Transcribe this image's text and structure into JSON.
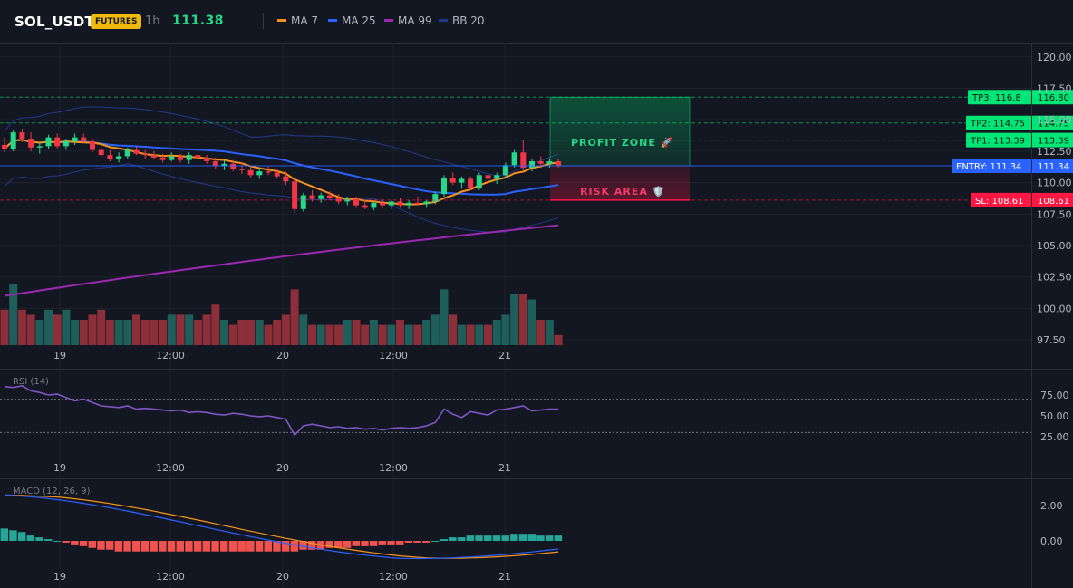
{
  "header": {
    "symbol": "SOL_USDT",
    "market_badge": "FUTURES",
    "timeframe": "1h",
    "last_price": "111.38",
    "legend": [
      {
        "label": "MA 7",
        "color": "#f7931a"
      },
      {
        "label": "MA 25",
        "color": "#2962ff"
      },
      {
        "label": "MA 99",
        "color": "#9c27b0"
      },
      {
        "label": "BB 20",
        "color": "#1e3a8a"
      }
    ]
  },
  "colors": {
    "background": "#131722",
    "bull": "#26d98a",
    "bear": "#f23645",
    "volume_bull": "#1f5f5b",
    "volume_bear": "#8c2f39",
    "entry": "#2962ff",
    "target": "#00e676",
    "stop": "#ff1744"
  },
  "price_axis": {
    "ticks": [
      "120.00",
      "117.50",
      "115.00",
      "112.50",
      "110.00",
      "107.50",
      "105.00",
      "102.50",
      "100.00",
      "97.50"
    ]
  },
  "time_axis": {
    "labels": [
      "19",
      "12:00",
      "20",
      "12:00",
      "21"
    ]
  },
  "levels": {
    "tp3": {
      "tag": "TP3: 116.8",
      "value": "116.80"
    },
    "tp2": {
      "tag": "TP2: 114.75",
      "value": "114.75"
    },
    "tp1": {
      "tag": "TP1: 113.39",
      "value": "113.39"
    },
    "entry": {
      "tag": "ENTRY: 111.34",
      "value": "111.34"
    },
    "sl": {
      "tag": "SL: 108.61",
      "value": "108.61"
    }
  },
  "zones": {
    "profit": "PROFIT ZONE 🚀",
    "risk": "RISK AREA 🛡️"
  },
  "rsi": {
    "title": "RSI (14)",
    "ticks": [
      "75.00",
      "50.00",
      "25.00"
    ],
    "overbought": 70,
    "oversold": 30
  },
  "macd": {
    "title": "MACD (12, 26, 9)",
    "ticks": [
      "2.00",
      "0.00"
    ]
  },
  "chart_data": {
    "type": "candlestick",
    "timeframe": "1h",
    "candles_ohlc": [
      [
        113.0,
        113.6,
        112.4,
        112.7
      ],
      [
        112.7,
        114.2,
        112.5,
        114.0
      ],
      [
        114.0,
        114.3,
        113.2,
        113.5
      ],
      [
        113.5,
        114.0,
        112.5,
        112.8
      ],
      [
        112.8,
        113.2,
        112.3,
        112.9
      ],
      [
        112.9,
        113.8,
        112.7,
        113.6
      ],
      [
        113.6,
        113.9,
        112.7,
        112.9
      ],
      [
        112.9,
        113.5,
        112.6,
        113.3
      ],
      [
        113.3,
        113.9,
        113.0,
        113.6
      ],
      [
        113.6,
        113.9,
        113.1,
        113.3
      ],
      [
        113.3,
        113.5,
        112.4,
        112.6
      ],
      [
        112.6,
        112.9,
        112.0,
        112.2
      ],
      [
        112.2,
        112.6,
        111.7,
        111.9
      ],
      [
        111.9,
        112.4,
        111.6,
        112.1
      ],
      [
        112.1,
        112.8,
        111.9,
        112.6
      ],
      [
        112.6,
        112.9,
        112.2,
        112.3
      ],
      [
        112.3,
        112.6,
        111.9,
        112.2
      ],
      [
        112.2,
        112.5,
        111.9,
        112.0
      ],
      [
        112.0,
        112.3,
        111.6,
        111.8
      ],
      [
        111.8,
        112.4,
        111.7,
        112.1
      ],
      [
        112.1,
        112.3,
        111.6,
        111.8
      ],
      [
        111.8,
        112.4,
        111.5,
        112.2
      ],
      [
        112.2,
        112.5,
        111.8,
        112.0
      ],
      [
        112.0,
        112.2,
        111.5,
        111.7
      ],
      [
        111.7,
        112.0,
        111.1,
        111.3
      ],
      [
        111.3,
        111.8,
        111.0,
        111.5
      ],
      [
        111.5,
        111.8,
        110.9,
        111.1
      ],
      [
        111.1,
        111.6,
        110.7,
        111.0
      ],
      [
        111.0,
        111.3,
        110.4,
        110.6
      ],
      [
        110.6,
        111.2,
        110.3,
        110.9
      ],
      [
        110.9,
        111.3,
        110.6,
        110.8
      ],
      [
        110.8,
        111.1,
        110.3,
        110.5
      ],
      [
        110.5,
        110.9,
        109.8,
        110.1
      ],
      [
        110.1,
        110.3,
        107.6,
        107.9
      ],
      [
        107.9,
        109.2,
        107.7,
        109.0
      ],
      [
        109.0,
        109.4,
        108.5,
        108.7
      ],
      [
        108.7,
        109.2,
        108.4,
        109.0
      ],
      [
        109.0,
        109.3,
        108.6,
        108.8
      ],
      [
        108.8,
        109.1,
        108.3,
        108.5
      ],
      [
        108.5,
        108.9,
        108.2,
        108.7
      ],
      [
        108.7,
        108.9,
        108.0,
        108.2
      ],
      [
        108.2,
        108.6,
        107.9,
        108.0
      ],
      [
        108.0,
        108.5,
        107.8,
        108.4
      ],
      [
        108.4,
        108.7,
        108.0,
        108.2
      ],
      [
        108.2,
        108.6,
        107.9,
        108.5
      ],
      [
        108.5,
        108.8,
        108.0,
        108.2
      ],
      [
        108.2,
        108.6,
        107.9,
        108.4
      ],
      [
        108.4,
        108.9,
        108.2,
        108.3
      ],
      [
        108.3,
        108.6,
        108.0,
        108.5
      ],
      [
        108.5,
        109.3,
        108.3,
        109.1
      ],
      [
        109.1,
        110.6,
        108.9,
        110.4
      ],
      [
        110.4,
        110.8,
        109.8,
        110.0
      ],
      [
        110.0,
        110.5,
        109.5,
        110.3
      ],
      [
        110.3,
        110.5,
        109.4,
        109.6
      ],
      [
        109.6,
        110.8,
        109.4,
        110.6
      ],
      [
        110.6,
        111.0,
        110.1,
        110.3
      ],
      [
        110.3,
        110.8,
        109.9,
        110.6
      ],
      [
        110.6,
        111.6,
        110.4,
        111.4
      ],
      [
        111.4,
        112.6,
        111.2,
        112.4
      ],
      [
        112.4,
        113.4,
        111.0,
        111.2
      ],
      [
        111.2,
        111.9,
        110.9,
        111.7
      ],
      [
        111.7,
        112.1,
        111.3,
        111.5
      ],
      [
        111.5,
        111.9,
        111.2,
        111.7
      ],
      [
        111.7,
        111.9,
        111.2,
        111.38
      ]
    ],
    "volume": [
      7,
      12,
      7,
      6,
      5,
      7,
      6,
      7,
      5,
      5,
      6,
      7,
      5,
      5,
      5,
      6,
      5,
      5,
      5,
      6,
      6,
      6,
      5,
      6,
      8,
      5,
      4,
      5,
      5,
      5,
      4,
      5,
      6,
      11,
      6,
      4,
      4,
      4,
      4,
      5,
      5,
      4,
      5,
      4,
      4,
      5,
      4,
      4,
      5,
      6,
      11,
      6,
      4,
      4,
      4,
      4,
      5,
      6,
      10,
      10,
      9,
      5,
      5,
      2
    ],
    "price_range": [
      96.5,
      121.5
    ],
    "rsi_values": [
      85,
      84,
      86,
      80,
      78,
      75,
      76,
      72,
      68,
      70,
      66,
      62,
      61,
      60,
      62,
      58,
      59,
      58,
      57,
      56,
      57,
      54,
      55,
      54,
      52,
      51,
      53,
      52,
      50,
      49,
      50,
      48,
      46,
      27,
      38,
      40,
      38,
      36,
      37,
      35,
      36,
      34,
      35,
      33,
      35,
      36,
      35,
      36,
      38,
      42,
      58,
      52,
      48,
      55,
      53,
      51,
      57,
      58,
      60,
      62,
      56,
      57,
      58,
      58
    ],
    "macd_hist": [
      0.7,
      0.6,
      0.5,
      0.3,
      0.2,
      0.1,
      0.0,
      -0.1,
      -0.2,
      -0.3,
      -0.4,
      -0.5,
      -0.5,
      -0.6,
      -0.6,
      -0.6,
      -0.6,
      -0.6,
      -0.6,
      -0.6,
      -0.6,
      -0.6,
      -0.6,
      -0.6,
      -0.6,
      -0.6,
      -0.6,
      -0.6,
      -0.6,
      -0.6,
      -0.6,
      -0.6,
      -0.6,
      -0.6,
      -0.5,
      -0.5,
      -0.5,
      -0.4,
      -0.4,
      -0.4,
      -0.3,
      -0.3,
      -0.3,
      -0.2,
      -0.2,
      -0.2,
      -0.1,
      -0.1,
      -0.1,
      0.0,
      0.1,
      0.2,
      0.2,
      0.3,
      0.3,
      0.3,
      0.3,
      0.3,
      0.4,
      0.4,
      0.4,
      0.3,
      0.3,
      0.3
    ]
  }
}
